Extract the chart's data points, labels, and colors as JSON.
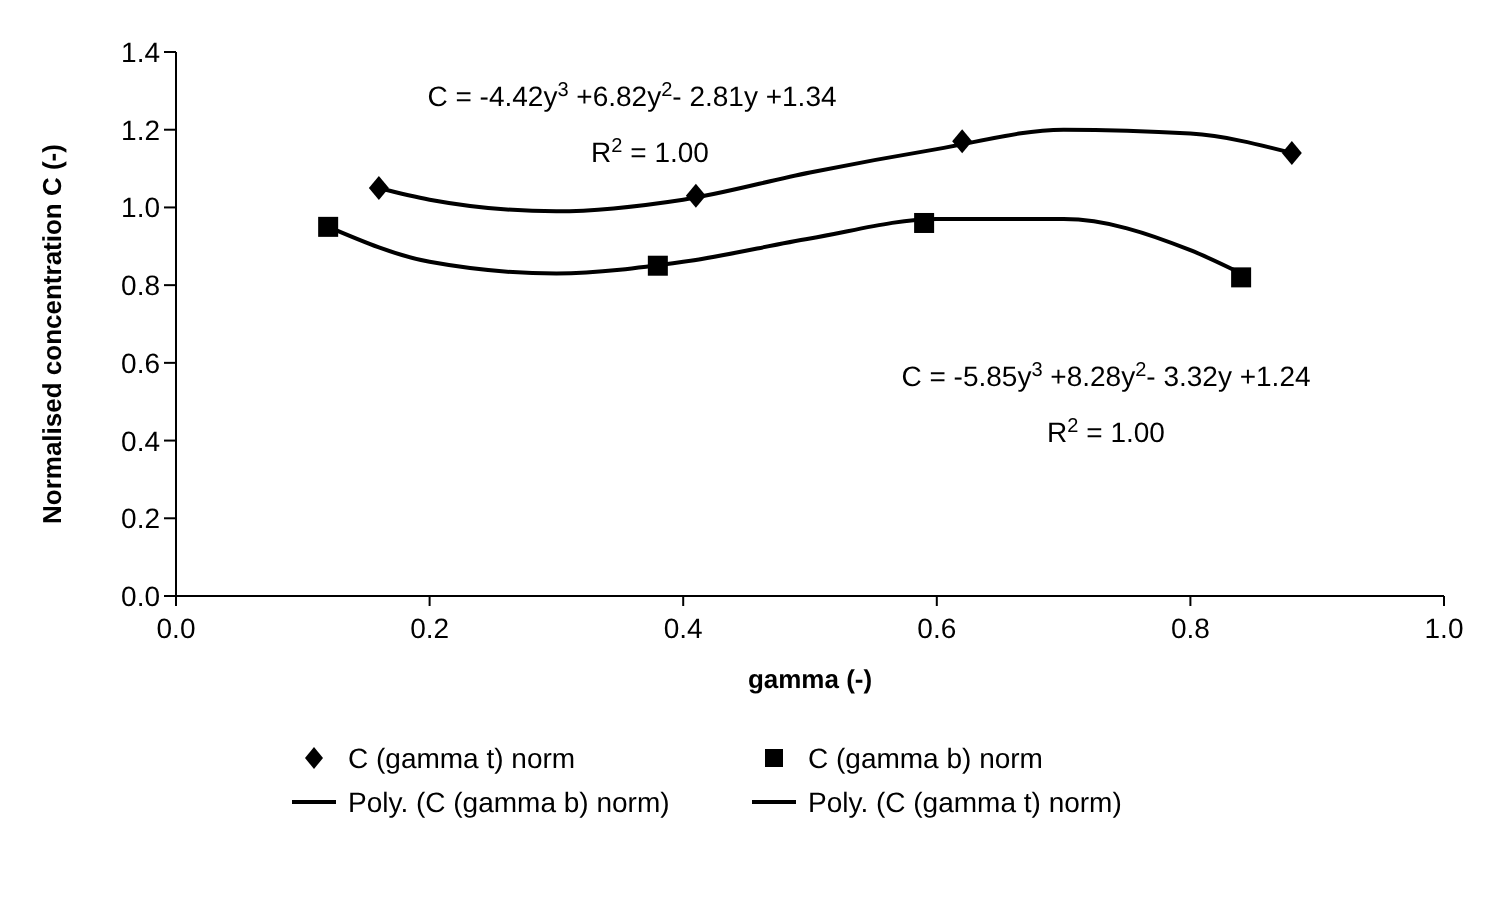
{
  "chart_data": {
    "type": "scatter",
    "xlabel": "gamma (-)",
    "ylabel": "Normalised concentration C (-)",
    "xlim": [
      0,
      1
    ],
    "xticks": [
      {
        "value": 0,
        "label": "0.0"
      },
      {
        "value": 0.2,
        "label": "0.2"
      },
      {
        "value": 0.4,
        "label": "0.4"
      },
      {
        "value": 0.6,
        "label": "0.6"
      },
      {
        "value": 0.8,
        "label": "0.8"
      },
      {
        "value": 1,
        "label": "1.0"
      }
    ],
    "ylim": [
      0,
      1.4
    ],
    "yticks": [
      {
        "value": 0,
        "label": "0.0"
      },
      {
        "value": 0.2,
        "label": "0.2"
      },
      {
        "value": 0.4,
        "label": "0.4"
      },
      {
        "value": 0.6,
        "label": "0.6"
      },
      {
        "value": 0.8,
        "label": "0.8"
      },
      {
        "value": 1,
        "label": "1.0"
      },
      {
        "value": 1.2,
        "label": "1.2"
      },
      {
        "value": 1.4,
        "label": "1.4"
      }
    ],
    "legend": "bottom",
    "series": [
      {
        "name": "C (gamma t) norm",
        "type": "scatter",
        "marker": "diamond",
        "color": "#000000",
        "x": [
          0.16,
          0.41,
          0.62,
          0.88
        ],
        "values": [
          1.05,
          1.03,
          1.17,
          1.14
        ]
      },
      {
        "name": "C (gamma b) norm",
        "type": "scatter",
        "marker": "square",
        "color": "#000000",
        "x": [
          0.12,
          0.38,
          0.59,
          0.84
        ],
        "values": [
          0.95,
          0.85,
          0.96,
          0.82
        ]
      },
      {
        "name": "Poly. (C (gamma b) norm)",
        "type": "line",
        "marker": "none",
        "line_style": "solid",
        "color": "#000000",
        "x": [
          0.12,
          0.2,
          0.3,
          0.4,
          0.5,
          0.6,
          0.7,
          0.8,
          0.84
        ],
        "values": [
          0.95,
          0.86,
          0.83,
          0.86,
          0.92,
          0.97,
          0.97,
          0.89,
          0.83
        ]
      },
      {
        "name": "Poly. (C (gamma t) norm)",
        "type": "line",
        "marker": "none",
        "line_style": "solid",
        "color": "#000000",
        "x": [
          0.16,
          0.2,
          0.3,
          0.4,
          0.5,
          0.6,
          0.7,
          0.8,
          0.88
        ],
        "values": [
          1.05,
          1.02,
          0.99,
          1.02,
          1.09,
          1.15,
          1.2,
          1.19,
          1.14
        ]
      }
    ],
    "annotations": [
      "C = -4.42y$^{3}$ +6.82y$^{2}$- 2.81y +1.34",
      "R$^{2}$ = 1.00",
      "C = -5.85y$^{3}$ +8.28y$^{2}$- 3.32y +1.24",
      "R$^{2}$ = 1.00"
    ]
  }
}
